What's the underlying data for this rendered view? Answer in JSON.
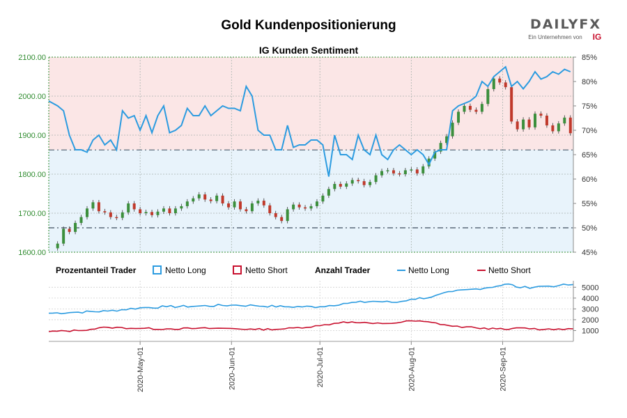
{
  "header": {
    "title": "Gold Kundenpositionierung",
    "subtitle": "IG Kunden Sentiment",
    "logo_text": "DAILYFX",
    "logo_tagline": "Ein Unternehmen von",
    "logo_ig": "IG"
  },
  "legend": {
    "group1_label": "Prozentanteil Trader",
    "group1_long": "Netto Long",
    "group1_short": "Netto Short",
    "group2_label": "Anzahl Trader",
    "group2_long": "Netto Long",
    "group2_short": "Netto Short"
  },
  "colors": {
    "long": "#2b9be0",
    "short": "#c8102e",
    "candle_up": "#3c8f3c",
    "candle_down": "#c0392b",
    "long_zone": "#e8f3fb",
    "short_zone": "#fbe6e6",
    "price_axis": "#2e8b2e",
    "ref_line": "#5a6b7b"
  },
  "chart_data": [
    {
      "type": "candlestick",
      "name_ref": "price",
      "title": "IG Kunden Sentiment",
      "y_left_ticks": [
        "2100.00",
        "2000.00",
        "1900.00",
        "1800.00",
        "1700.00",
        "1600.00"
      ],
      "y_left_range": [
        1600,
        2100
      ],
      "y_right_ticks": [
        "85%",
        "80%",
        "75%",
        "70%",
        "65%",
        "60%",
        "55%",
        "50%",
        "45%"
      ],
      "y_right_range": [
        45,
        85
      ],
      "x_tick_labels": [
        "2020-May-01",
        "2020-Jun-01",
        "2020-Jul-01",
        "2020-Aug-01",
        "2020-Sep-01"
      ],
      "x_tick_days": [
        31,
        62,
        92,
        123,
        154
      ],
      "day_range": [
        0,
        178
      ],
      "reference_lines": {
        "price": 1862,
        "percent": 50
      },
      "price_close": [
        {
          "d": 0,
          "v": 1610
        },
        {
          "d": 3,
          "v": 1622
        },
        {
          "d": 5,
          "v": 1660
        },
        {
          "d": 7,
          "v": 1652
        },
        {
          "d": 9,
          "v": 1675
        },
        {
          "d": 11,
          "v": 1690
        },
        {
          "d": 13,
          "v": 1712
        },
        {
          "d": 15,
          "v": 1728
        },
        {
          "d": 17,
          "v": 1705
        },
        {
          "d": 19,
          "v": 1702
        },
        {
          "d": 21,
          "v": 1690
        },
        {
          "d": 23,
          "v": 1688
        },
        {
          "d": 25,
          "v": 1702
        },
        {
          "d": 27,
          "v": 1725
        },
        {
          "d": 29,
          "v": 1710
        },
        {
          "d": 31,
          "v": 1700
        },
        {
          "d": 33,
          "v": 1703
        },
        {
          "d": 35,
          "v": 1695
        },
        {
          "d": 37,
          "v": 1704
        },
        {
          "d": 39,
          "v": 1712
        },
        {
          "d": 41,
          "v": 1700
        },
        {
          "d": 43,
          "v": 1712
        },
        {
          "d": 45,
          "v": 1718
        },
        {
          "d": 47,
          "v": 1730
        },
        {
          "d": 49,
          "v": 1738
        },
        {
          "d": 51,
          "v": 1748
        },
        {
          "d": 53,
          "v": 1735
        },
        {
          "d": 55,
          "v": 1731
        },
        {
          "d": 57,
          "v": 1745
        },
        {
          "d": 59,
          "v": 1725
        },
        {
          "d": 61,
          "v": 1715
        },
        {
          "d": 63,
          "v": 1730
        },
        {
          "d": 65,
          "v": 1710
        },
        {
          "d": 67,
          "v": 1705
        },
        {
          "d": 69,
          "v": 1725
        },
        {
          "d": 71,
          "v": 1732
        },
        {
          "d": 73,
          "v": 1720
        },
        {
          "d": 75,
          "v": 1700
        },
        {
          "d": 77,
          "v": 1690
        },
        {
          "d": 79,
          "v": 1680
        },
        {
          "d": 81,
          "v": 1710
        },
        {
          "d": 83,
          "v": 1722
        },
        {
          "d": 85,
          "v": 1715
        },
        {
          "d": 87,
          "v": 1712
        },
        {
          "d": 89,
          "v": 1718
        },
        {
          "d": 91,
          "v": 1730
        },
        {
          "d": 93,
          "v": 1745
        },
        {
          "d": 95,
          "v": 1762
        },
        {
          "d": 97,
          "v": 1775
        },
        {
          "d": 99,
          "v": 1768
        },
        {
          "d": 101,
          "v": 1776
        },
        {
          "d": 103,
          "v": 1785
        },
        {
          "d": 105,
          "v": 1782
        },
        {
          "d": 107,
          "v": 1772
        },
        {
          "d": 109,
          "v": 1780
        },
        {
          "d": 111,
          "v": 1797
        },
        {
          "d": 113,
          "v": 1808
        },
        {
          "d": 115,
          "v": 1810
        },
        {
          "d": 117,
          "v": 1802
        },
        {
          "d": 119,
          "v": 1800
        },
        {
          "d": 121,
          "v": 1810
        },
        {
          "d": 123,
          "v": 1812
        },
        {
          "d": 125,
          "v": 1802
        },
        {
          "d": 127,
          "v": 1820
        },
        {
          "d": 129,
          "v": 1840
        },
        {
          "d": 131,
          "v": 1858
        },
        {
          "d": 133,
          "v": 1880
        },
        {
          "d": 135,
          "v": 1897
        },
        {
          "d": 137,
          "v": 1932
        },
        {
          "d": 139,
          "v": 1960
        },
        {
          "d": 141,
          "v": 1975
        },
        {
          "d": 143,
          "v": 1965
        },
        {
          "d": 145,
          "v": 1960
        },
        {
          "d": 147,
          "v": 1980
        },
        {
          "d": 149,
          "v": 2018
        },
        {
          "d": 151,
          "v": 2045
        },
        {
          "d": 153,
          "v": 2035
        },
        {
          "d": 155,
          "v": 2023
        },
        {
          "d": 157,
          "v": 1935
        },
        {
          "d": 159,
          "v": 1915
        },
        {
          "d": 161,
          "v": 1940
        },
        {
          "d": 163,
          "v": 1920
        },
        {
          "d": 165,
          "v": 1955
        },
        {
          "d": 167,
          "v": 1950
        },
        {
          "d": 169,
          "v": 1925
        },
        {
          "d": 171,
          "v": 1910
        },
        {
          "d": 173,
          "v": 1930
        },
        {
          "d": 175,
          "v": 1945
        },
        {
          "d": 177,
          "v": 1905
        }
      ],
      "percent_long": [
        {
          "d": 0,
          "v": 76
        },
        {
          "d": 3,
          "v": 75
        },
        {
          "d": 5,
          "v": 74
        },
        {
          "d": 7,
          "v": 69
        },
        {
          "d": 9,
          "v": 66
        },
        {
          "d": 11,
          "v": 66
        },
        {
          "d": 13,
          "v": 65.5
        },
        {
          "d": 15,
          "v": 68
        },
        {
          "d": 17,
          "v": 69
        },
        {
          "d": 19,
          "v": 67
        },
        {
          "d": 21,
          "v": 68
        },
        {
          "d": 23,
          "v": 66
        },
        {
          "d": 25,
          "v": 74
        },
        {
          "d": 27,
          "v": 72.5
        },
        {
          "d": 29,
          "v": 73
        },
        {
          "d": 31,
          "v": 70
        },
        {
          "d": 33,
          "v": 73
        },
        {
          "d": 35,
          "v": 69.5
        },
        {
          "d": 37,
          "v": 73
        },
        {
          "d": 39,
          "v": 75
        },
        {
          "d": 41,
          "v": 69.5
        },
        {
          "d": 43,
          "v": 70
        },
        {
          "d": 45,
          "v": 71
        },
        {
          "d": 47,
          "v": 74.5
        },
        {
          "d": 49,
          "v": 73
        },
        {
          "d": 51,
          "v": 73
        },
        {
          "d": 53,
          "v": 75
        },
        {
          "d": 55,
          "v": 73
        },
        {
          "d": 57,
          "v": 74
        },
        {
          "d": 59,
          "v": 75
        },
        {
          "d": 61,
          "v": 74.5
        },
        {
          "d": 63,
          "v": 74.5
        },
        {
          "d": 65,
          "v": 74
        },
        {
          "d": 67,
          "v": 79
        },
        {
          "d": 69,
          "v": 77
        },
        {
          "d": 71,
          "v": 70
        },
        {
          "d": 73,
          "v": 69
        },
        {
          "d": 75,
          "v": 69
        },
        {
          "d": 77,
          "v": 66
        },
        {
          "d": 79,
          "v": 66
        },
        {
          "d": 81,
          "v": 71
        },
        {
          "d": 83,
          "v": 66.5
        },
        {
          "d": 85,
          "v": 67
        },
        {
          "d": 87,
          "v": 67
        },
        {
          "d": 89,
          "v": 68
        },
        {
          "d": 91,
          "v": 68
        },
        {
          "d": 93,
          "v": 67
        },
        {
          "d": 95,
          "v": 60.5
        },
        {
          "d": 97,
          "v": 69
        },
        {
          "d": 99,
          "v": 65
        },
        {
          "d": 101,
          "v": 65
        },
        {
          "d": 103,
          "v": 64
        },
        {
          "d": 105,
          "v": 69
        },
        {
          "d": 107,
          "v": 66
        },
        {
          "d": 109,
          "v": 65
        },
        {
          "d": 111,
          "v": 69
        },
        {
          "d": 113,
          "v": 65
        },
        {
          "d": 115,
          "v": 64
        },
        {
          "d": 117,
          "v": 66
        },
        {
          "d": 119,
          "v": 67
        },
        {
          "d": 121,
          "v": 66
        },
        {
          "d": 123,
          "v": 65
        },
        {
          "d": 125,
          "v": 66
        },
        {
          "d": 127,
          "v": 65
        },
        {
          "d": 129,
          "v": 63
        },
        {
          "d": 131,
          "v": 65.5
        },
        {
          "d": 133,
          "v": 66
        },
        {
          "d": 135,
          "v": 66
        },
        {
          "d": 137,
          "v": 74
        },
        {
          "d": 139,
          "v": 75
        },
        {
          "d": 141,
          "v": 75.5
        },
        {
          "d": 143,
          "v": 76
        },
        {
          "d": 145,
          "v": 77
        },
        {
          "d": 147,
          "v": 80
        },
        {
          "d": 149,
          "v": 79
        },
        {
          "d": 151,
          "v": 81
        },
        {
          "d": 153,
          "v": 82
        },
        {
          "d": 155,
          "v": 83
        },
        {
          "d": 157,
          "v": 79
        },
        {
          "d": 159,
          "v": 80
        },
        {
          "d": 161,
          "v": 78.5
        },
        {
          "d": 163,
          "v": 80
        },
        {
          "d": 165,
          "v": 82
        },
        {
          "d": 167,
          "v": 80.5
        },
        {
          "d": 169,
          "v": 81
        },
        {
          "d": 171,
          "v": 82
        },
        {
          "d": 173,
          "v": 81.5
        },
        {
          "d": 175,
          "v": 82.5
        },
        {
          "d": 177,
          "v": 82
        }
      ]
    },
    {
      "type": "line",
      "title": "",
      "series": [
        {
          "name": "Netto Long",
          "values_by_day": [
            {
              "d": 0,
              "v": 2600
            },
            {
              "d": 10,
              "v": 2700
            },
            {
              "d": 20,
              "v": 2800
            },
            {
              "d": 31,
              "v": 3100
            },
            {
              "d": 40,
              "v": 3200
            },
            {
              "d": 50,
              "v": 3250
            },
            {
              "d": 62,
              "v": 3350
            },
            {
              "d": 70,
              "v": 3300
            },
            {
              "d": 80,
              "v": 3200
            },
            {
              "d": 92,
              "v": 3200
            },
            {
              "d": 100,
              "v": 3500
            },
            {
              "d": 110,
              "v": 3700
            },
            {
              "d": 118,
              "v": 3600
            },
            {
              "d": 123,
              "v": 3900
            },
            {
              "d": 130,
              "v": 4100
            },
            {
              "d": 137,
              "v": 4600
            },
            {
              "d": 145,
              "v": 4850
            },
            {
              "d": 152,
              "v": 5100
            },
            {
              "d": 156,
              "v": 5300
            },
            {
              "d": 160,
              "v": 4950
            },
            {
              "d": 168,
              "v": 5100
            },
            {
              "d": 173,
              "v": 5150
            },
            {
              "d": 178,
              "v": 5250
            }
          ]
        },
        {
          "name": "Netto Short",
          "values_by_day": [
            {
              "d": 0,
              "v": 900
            },
            {
              "d": 10,
              "v": 1000
            },
            {
              "d": 20,
              "v": 1300
            },
            {
              "d": 31,
              "v": 1200
            },
            {
              "d": 40,
              "v": 1150
            },
            {
              "d": 50,
              "v": 1200
            },
            {
              "d": 62,
              "v": 1200
            },
            {
              "d": 70,
              "v": 1100
            },
            {
              "d": 80,
              "v": 1150
            },
            {
              "d": 92,
              "v": 1450
            },
            {
              "d": 100,
              "v": 1800
            },
            {
              "d": 110,
              "v": 1650
            },
            {
              "d": 118,
              "v": 1700
            },
            {
              "d": 123,
              "v": 1900
            },
            {
              "d": 130,
              "v": 1750
            },
            {
              "d": 137,
              "v": 1400
            },
            {
              "d": 145,
              "v": 1250
            },
            {
              "d": 152,
              "v": 1150
            },
            {
              "d": 156,
              "v": 1100
            },
            {
              "d": 160,
              "v": 1250
            },
            {
              "d": 168,
              "v": 1100
            },
            {
              "d": 173,
              "v": 1150
            },
            {
              "d": 178,
              "v": 1150
            }
          ]
        }
      ],
      "y_right_ticks": [
        "5000",
        "4000",
        "3000",
        "2000",
        "1000"
      ],
      "y_range": [
        0,
        5600
      ]
    }
  ]
}
